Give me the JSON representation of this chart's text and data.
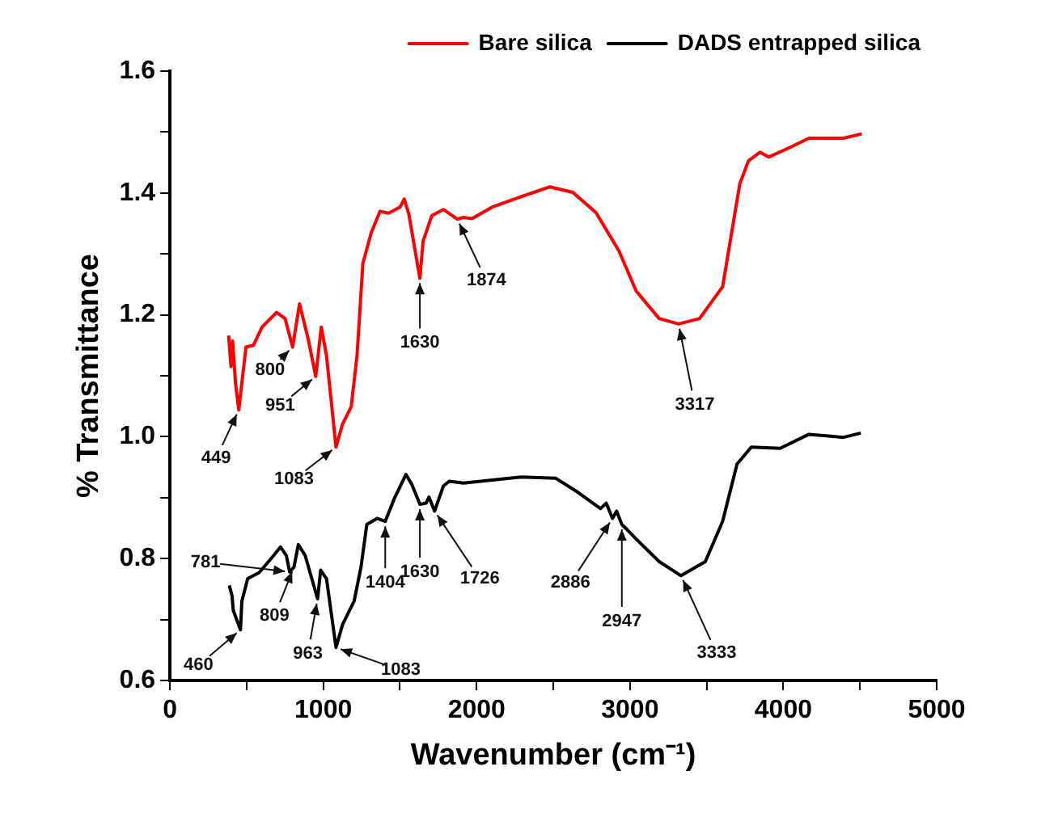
{
  "chart_data": {
    "type": "line",
    "xlabel": "Wavenumber (cm⁻¹)",
    "ylabel": "% Transmittance",
    "xlim": [
      0,
      5000
    ],
    "ylim": [
      0.6,
      1.6
    ],
    "xticks": [
      0,
      {
        "value": 500,
        "label": null
      },
      1000,
      {
        "value": 1500,
        "label": null
      },
      2000,
      {
        "value": 2500,
        "label": null
      },
      3000,
      {
        "value": 3500,
        "label": null
      },
      4000,
      {
        "value": 4500,
        "label": null
      },
      5000
    ],
    "yticks": [
      0.6,
      {
        "value": 0.7,
        "label": null
      },
      0.8,
      {
        "value": 0.9,
        "label": null
      },
      {
        "value": 1.0,
        "label": "1.0"
      },
      {
        "value": 1.1,
        "label": null
      },
      1.2,
      {
        "value": 1.3,
        "label": null
      },
      1.4,
      {
        "value": 1.5,
        "label": null
      },
      1.6
    ],
    "grid": false,
    "legend": "top right",
    "marker": "none",
    "line_style": "solid",
    "series": [
      {
        "name": "Bare silica",
        "color": "#ff0000",
        "x": [
          383,
          398,
          409,
          428,
          449,
          462,
          496,
          544,
          601,
          695,
          751,
          800,
          845,
          901,
          951,
          987,
          1021,
          1083,
          1126,
          1182,
          1220,
          1258,
          1313,
          1370,
          1426,
          1501,
          1528,
          1558,
          1630,
          1651,
          1708,
          1783,
          1874,
          1914,
          1970,
          2102,
          2290,
          2477,
          2627,
          2778,
          2928,
          3041,
          3190,
          3317,
          3454,
          3604,
          3716,
          3773,
          3848,
          3904,
          4054,
          4167,
          4392,
          4512
        ],
        "values": [
          1.166,
          1.115,
          1.157,
          1.087,
          1.044,
          1.073,
          1.147,
          1.15,
          1.18,
          1.204,
          1.194,
          1.147,
          1.218,
          1.161,
          1.099,
          1.18,
          1.133,
          0.983,
          1.021,
          1.049,
          1.133,
          1.284,
          1.335,
          1.37,
          1.367,
          1.377,
          1.39,
          1.365,
          1.26,
          1.321,
          1.363,
          1.373,
          1.357,
          1.36,
          1.358,
          1.377,
          1.394,
          1.41,
          1.401,
          1.368,
          1.305,
          1.239,
          1.194,
          1.185,
          1.194,
          1.246,
          1.415,
          1.453,
          1.467,
          1.459,
          1.476,
          1.49,
          1.49,
          1.497
        ]
      },
      {
        "name": "DADS entrapped silica",
        "color": "#000000",
        "x": [
          387,
          405,
          413,
          460,
          469,
          507,
          582,
          676,
          721,
          759,
          781,
          809,
          837,
          882,
          963,
          983,
          1021,
          1083,
          1126,
          1201,
          1246,
          1284,
          1351,
          1404,
          1464,
          1539,
          1577,
          1630,
          1670,
          1689,
          1726,
          1783,
          1821,
          1914,
          2102,
          2290,
          2515,
          2665,
          2808,
          2845,
          2886,
          2913,
          2947,
          2984,
          3041,
          3191,
          3333,
          3491,
          3604,
          3698,
          3791,
          3979,
          4167,
          4392,
          4505
        ],
        "values": [
          0.756,
          0.739,
          0.715,
          0.683,
          0.73,
          0.767,
          0.777,
          0.805,
          0.819,
          0.805,
          0.778,
          0.786,
          0.823,
          0.805,
          0.734,
          0.781,
          0.767,
          0.654,
          0.692,
          0.73,
          0.786,
          0.856,
          0.866,
          0.861,
          0.899,
          0.938,
          0.922,
          0.889,
          0.891,
          0.901,
          0.878,
          0.919,
          0.927,
          0.924,
          0.929,
          0.934,
          0.932,
          0.908,
          0.882,
          0.891,
          0.866,
          0.878,
          0.856,
          0.847,
          0.832,
          0.795,
          0.772,
          0.795,
          0.861,
          0.955,
          0.983,
          0.981,
          1.004,
          0.999,
          1.006
        ]
      }
    ],
    "annotations": [
      {
        "text": "449",
        "x": 449,
        "y": 1.044
      },
      {
        "text": "800",
        "x": 800,
        "y": 1.147
      },
      {
        "text": "951",
        "x": 951,
        "y": 1.099
      },
      {
        "text": "1083",
        "x": 1083,
        "y": 0.983
      },
      {
        "text": "1630",
        "x": 1630,
        "y": 1.26
      },
      {
        "text": "1874",
        "x": 1874,
        "y": 1.357
      },
      {
        "text": "3317",
        "x": 3317,
        "y": 1.185
      },
      {
        "text": "460",
        "x": 460,
        "y": 0.683
      },
      {
        "text": "781",
        "x": 781,
        "y": 0.778
      },
      {
        "text": "809",
        "x": 809,
        "y": 0.786
      },
      {
        "text": "963",
        "x": 963,
        "y": 0.734
      },
      {
        "text": "1083",
        "x": 1083,
        "y": 0.654
      },
      {
        "text": "1404",
        "x": 1404,
        "y": 0.861
      },
      {
        "text": "1630",
        "x": 1630,
        "y": 0.889
      },
      {
        "text": "1726",
        "x": 1726,
        "y": 0.878
      },
      {
        "text": "2886",
        "x": 2886,
        "y": 0.866
      },
      {
        "text": "2947",
        "x": 2947,
        "y": 0.856
      },
      {
        "text": "3333",
        "x": 3333,
        "y": 0.772
      }
    ]
  }
}
